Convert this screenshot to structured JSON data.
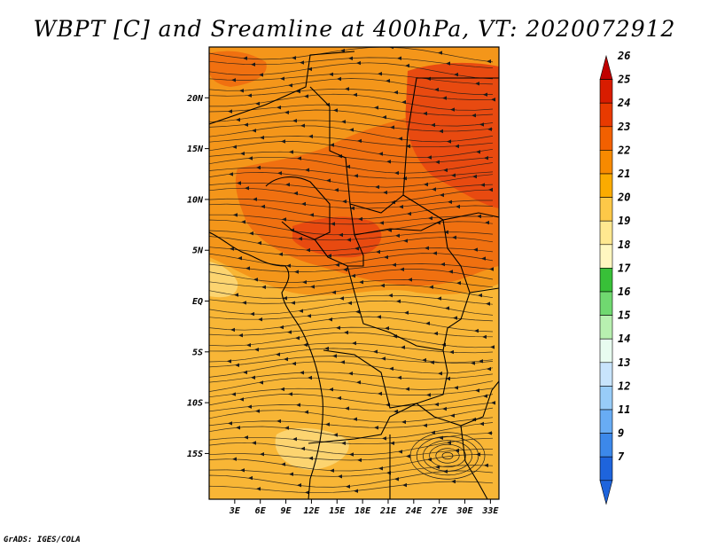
{
  "title": "WBPT [C] and Sreamline at 400hPa, VT: 2020072912",
  "credit": "GrADS: IGES/COLA",
  "map": {
    "lon_range": [
      0,
      34
    ],
    "lat_range": [
      -19.5,
      25
    ],
    "lat_ticks": [
      "20N",
      "15N",
      "10N",
      "5N",
      "EQ",
      "5S",
      "10S",
      "15S"
    ],
    "lon_ticks": [
      "3E",
      "6E",
      "9E",
      "12E",
      "15E",
      "18E",
      "21E",
      "24E",
      "27E",
      "30E",
      "33E"
    ]
  },
  "colorbar": {
    "labels": [
      "26",
      "25",
      "24",
      "23",
      "22",
      "21",
      "20",
      "19",
      "18",
      "17",
      "16",
      "15",
      "14",
      "13",
      "12",
      "11",
      "9",
      "7"
    ],
    "colors": [
      "#c00000",
      "#d81c00",
      "#e83a00",
      "#f26000",
      "#f78a00",
      "#fbab00",
      "#fdc848",
      "#ffe890",
      "#fff7c0",
      "#38c038",
      "#70d870",
      "#b8f0b0",
      "#e8fcf0",
      "#c8e4fc",
      "#98ccf8",
      "#68acf4",
      "#3c88ea",
      "#1e64dc",
      "#1e64dc"
    ]
  },
  "field_colors": {
    "warm_max": "#e84a10",
    "warm": "#f07010",
    "mid": "#f4961a",
    "cool": "#f8b636",
    "coolest": "#fcd470",
    "stream": "#1a1a1a",
    "border": "#000000"
  }
}
